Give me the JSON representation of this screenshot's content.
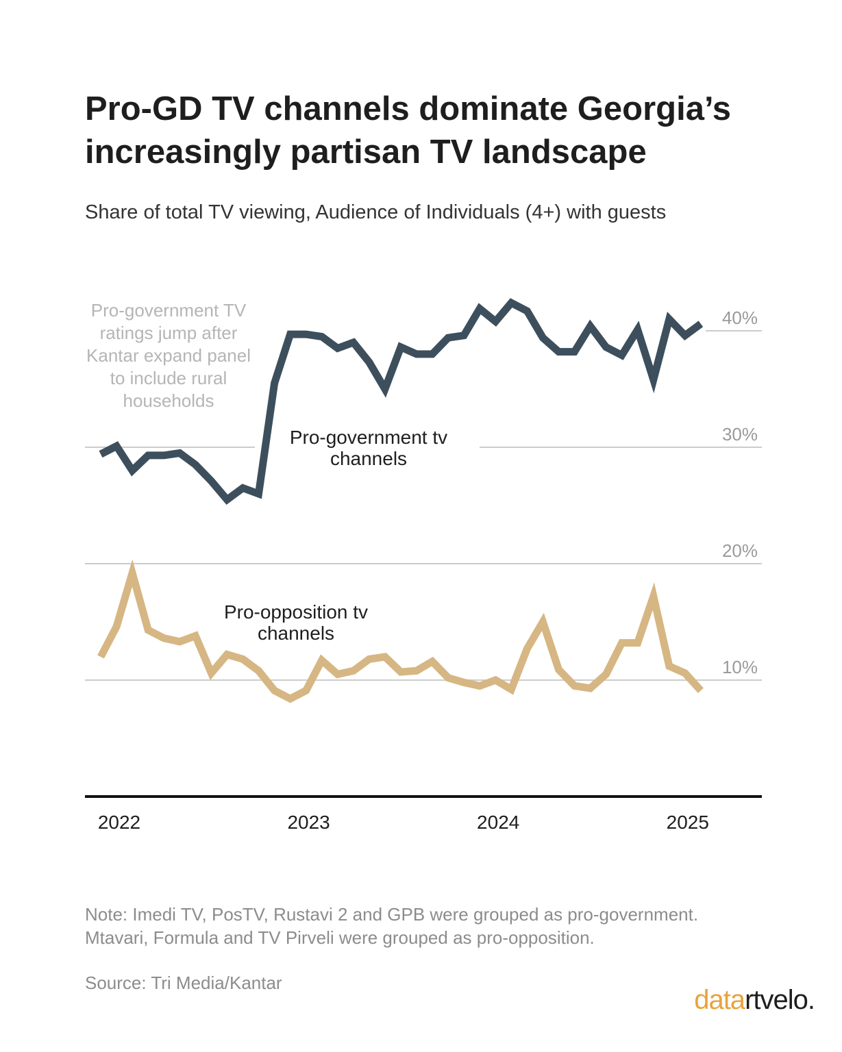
{
  "title": "Pro-GD TV channels dominate Georgia’s increasingly partisan TV landscape",
  "subtitle": "Share of total TV viewing, Audience of Individuals (4+) with guests",
  "note_lines": [
    "Note: Imedi TV, PosTV, Rustavi 2 and GPB were grouped as pro-government.",
    "Mtavari, Formula and TV Pirveli were grouped as pro-opposition."
  ],
  "source": "Source: Tri Media/Kantar",
  "logo": {
    "part1": "data",
    "part2": "rtvelo."
  },
  "colors": {
    "pro_government": "#3d4f5c",
    "pro_opposition": "#d6b683",
    "grid": "#cccccc",
    "annotation": "#b5b5b5",
    "axis": "#111111"
  },
  "chart_data": {
    "type": "line",
    "x_start": "2022-01",
    "x_step": "month",
    "x_ticks": [
      "2022",
      "2023",
      "2024",
      "2025"
    ],
    "y_ticks": [
      "10%",
      "20%",
      "30%",
      "40%"
    ],
    "y_tick_values": [
      10,
      20,
      30,
      40
    ],
    "ylim": [
      0,
      44
    ],
    "grid": true,
    "annotation": {
      "lines": [
        "Pro-government TV",
        "ratings jump after",
        "Kantar expand panel",
        "to include rural",
        "households"
      ]
    },
    "series": [
      {
        "name": "Pro-government tv channels",
        "label_lines": [
          "Pro-government tv",
          "channels"
        ],
        "color": "#3d4f5c",
        "values": [
          29.4,
          30.1,
          28.0,
          29.3,
          29.3,
          29.5,
          28.5,
          27.1,
          25.5,
          26.5,
          26.0,
          35.5,
          39.7,
          39.7,
          39.5,
          38.5,
          39.0,
          37.3,
          35.0,
          38.6,
          38.0,
          38.0,
          39.4,
          39.6,
          41.9,
          40.8,
          42.4,
          41.7,
          39.4,
          38.2,
          38.2,
          40.4,
          38.6,
          37.9,
          40.1,
          35.8,
          41.0,
          39.6,
          40.6
        ]
      },
      {
        "name": "Pro-opposition tv channels",
        "label_lines": [
          "Pro-opposition tv",
          "channels"
        ],
        "color": "#d6b683",
        "values": [
          12.0,
          14.6,
          19.2,
          14.3,
          13.6,
          13.3,
          13.8,
          10.6,
          12.2,
          11.8,
          10.8,
          9.1,
          8.4,
          9.1,
          11.7,
          10.5,
          10.8,
          11.8,
          12.0,
          10.7,
          10.8,
          11.6,
          10.2,
          9.8,
          9.5,
          10.0,
          9.2,
          12.7,
          15.0,
          10.9,
          9.5,
          9.3,
          10.5,
          13.2,
          13.2,
          17.2,
          11.2,
          10.6,
          9.1
        ]
      }
    ]
  }
}
